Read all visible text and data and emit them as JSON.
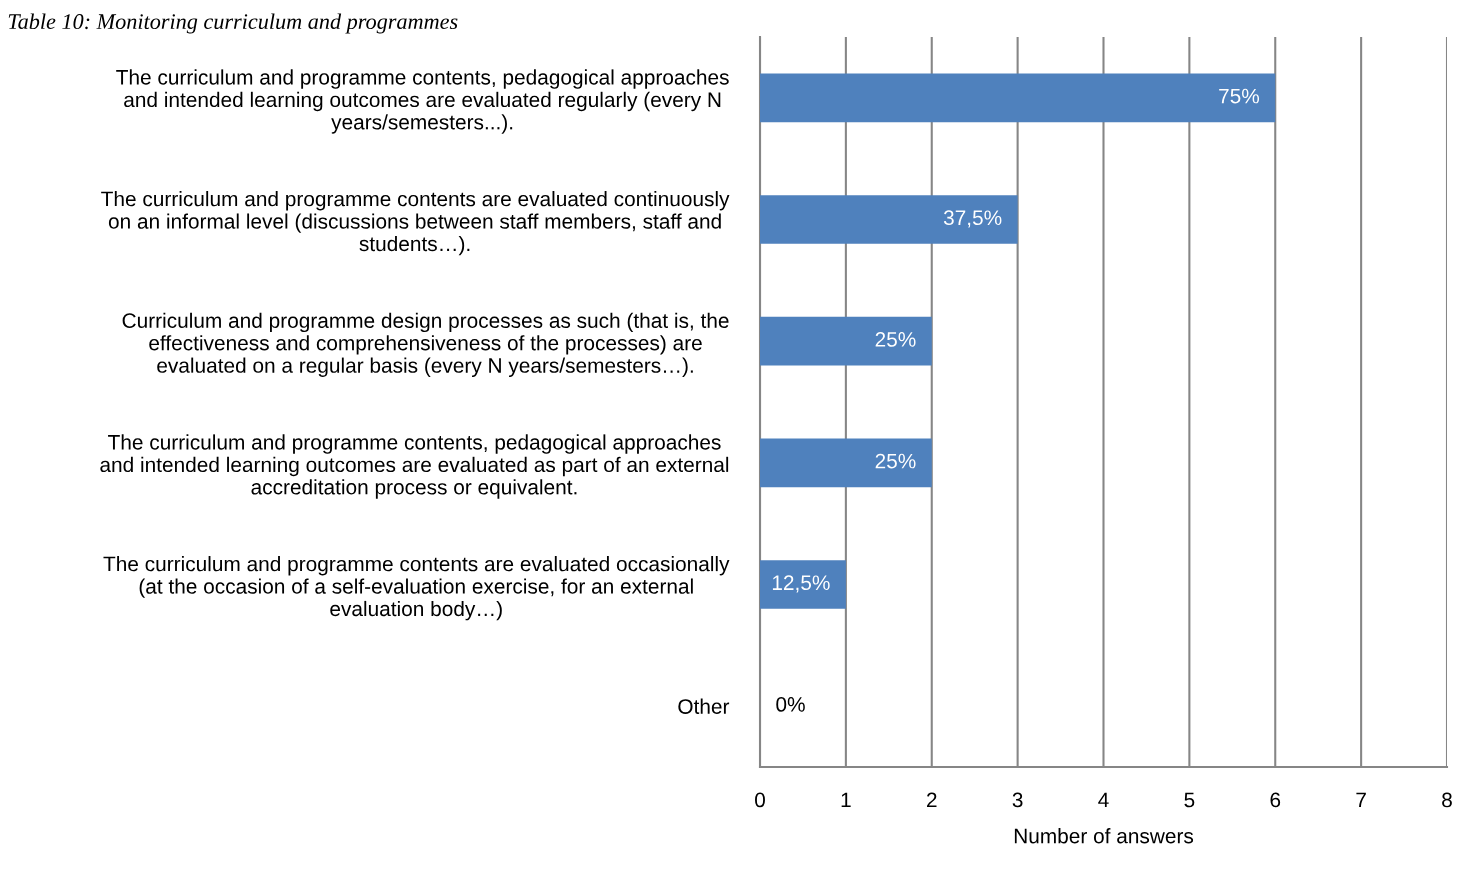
{
  "chart_data": {
    "type": "bar",
    "orientation": "horizontal",
    "title": "Table 10: Monitoring curriculum and programmes",
    "categories": [
      "The curriculum and programme contents, pedagogical approaches\nand intended learning outcomes are evaluated regularly (every N\nyears/semesters...).",
      "The curriculum and programme contents are evaluated continuously\non an informal level (discussions between staff members, staff and\nstudents…).",
      "Curriculum and programme design processes as such (that is, the\neffectiveness and comprehensiveness of the processes) are\nevaluated on a regular basis (every N years/semesters…).",
      "The curriculum and programme contents, pedagogical approaches\nand intended learning outcomes are evaluated as part of an external\naccreditation process or equivalent.",
      "The curriculum and programme contents are evaluated occasionally\n(at the occasion of a self-evaluation exercise, for an external\nevaluation body…)",
      "Other"
    ],
    "values": [
      6,
      3,
      2,
      2,
      1,
      0
    ],
    "annotations": [
      {
        "text": "75%",
        "x": 6,
        "y": "The curriculum and programme contents, pedagogical approaches\nand intended learning outcomes are evaluated regularly (every N\nyears/semesters...)."
      },
      {
        "text": "37,5%",
        "x": 3,
        "y": "The curriculum and programme contents are evaluated continuously\non an informal level (discussions between staff members, staff and\nstudents…)."
      },
      {
        "text": "25%",
        "x": 2,
        "y": "Curriculum and programme design processes as such (that is, the\neffectiveness and comprehensiveness of the processes) are\nevaluated on a regular basis (every N years/semesters…)."
      },
      {
        "text": "25%",
        "x": 2,
        "y": "The curriculum and programme contents, pedagogical approaches\nand intended learning outcomes are evaluated as part of an external\naccreditation process or equivalent."
      },
      {
        "text": "12,5%",
        "x": 1,
        "y": "The curriculum and programme contents are evaluated occasionally\n(at the occasion of a self-evaluation exercise, for an external\nevaluation body…)"
      },
      {
        "text": "0%",
        "x": 0,
        "y": "Other"
      }
    ],
    "color": "#4f81bd",
    "xlabel": "Number of answers",
    "xlim": [
      0,
      8
    ],
    "xticks": [
      0,
      1,
      2,
      3,
      4,
      5,
      6,
      7,
      8
    ],
    "grid": "x"
  }
}
